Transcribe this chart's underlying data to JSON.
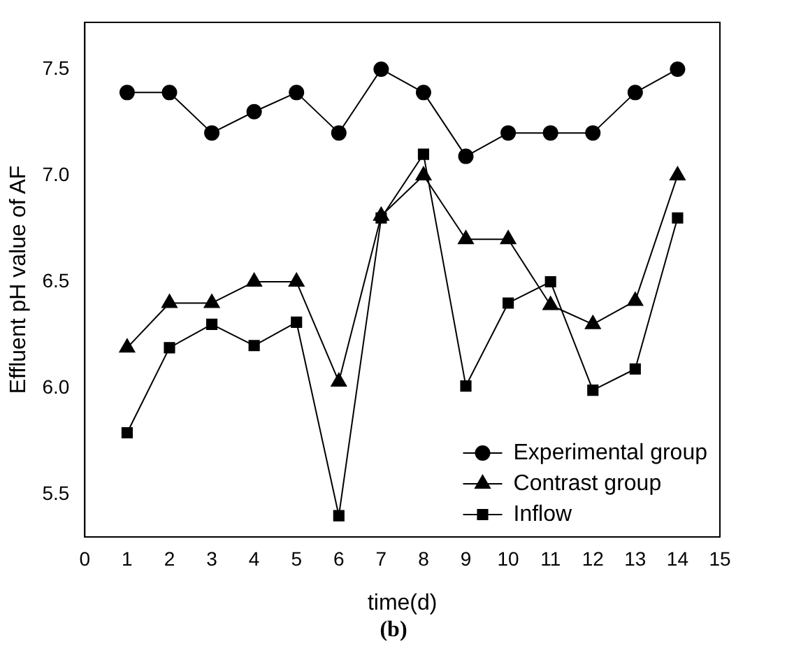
{
  "chart_data": {
    "type": "line",
    "xlabel": "time(d)",
    "ylabel": "Effluent pH value of AF",
    "annotations": [
      "(b)"
    ],
    "x": [
      1,
      2,
      3,
      4,
      5,
      6,
      7,
      8,
      9,
      10,
      11,
      12,
      13,
      14
    ],
    "xlim": [
      0,
      15
    ],
    "xticks": [
      0,
      1,
      2,
      3,
      4,
      5,
      6,
      7,
      8,
      9,
      10,
      11,
      12,
      13,
      14,
      15
    ],
    "ylim": [
      5.3,
      7.72
    ],
    "yticks": [
      {
        "value": 5.5,
        "label": "5.5"
      },
      {
        "value": 6,
        "label": "6.0"
      },
      {
        "value": 6.5,
        "label": "6.5"
      },
      {
        "value": 7,
        "label": "7.0"
      },
      {
        "value": 7.5,
        "label": "7.5"
      }
    ],
    "grid": false,
    "legend": "bottom right",
    "line_style": "solid",
    "series": [
      {
        "name": "Experimental group",
        "color": "#000000",
        "marker": "circle",
        "values": [
          7.39,
          7.39,
          7.2,
          7.3,
          7.39,
          7.2,
          7.5,
          7.39,
          7.09,
          7.2,
          7.2,
          7.2,
          7.39,
          7.5
        ]
      },
      {
        "name": "Contrast group",
        "color": "#000000",
        "marker": "triangle",
        "values": [
          6.19,
          6.4,
          6.4,
          6.5,
          6.5,
          6.03,
          6.81,
          7.0,
          6.7,
          6.7,
          6.39,
          6.3,
          6.41,
          7.0
        ]
      },
      {
        "name": "Inflow",
        "color": "#000000",
        "marker": "square",
        "values": [
          5.79,
          6.19,
          6.3,
          6.2,
          6.31,
          5.4,
          6.8,
          7.1,
          6.01,
          6.4,
          6.5,
          5.99,
          6.09,
          6.8
        ]
      }
    ]
  }
}
